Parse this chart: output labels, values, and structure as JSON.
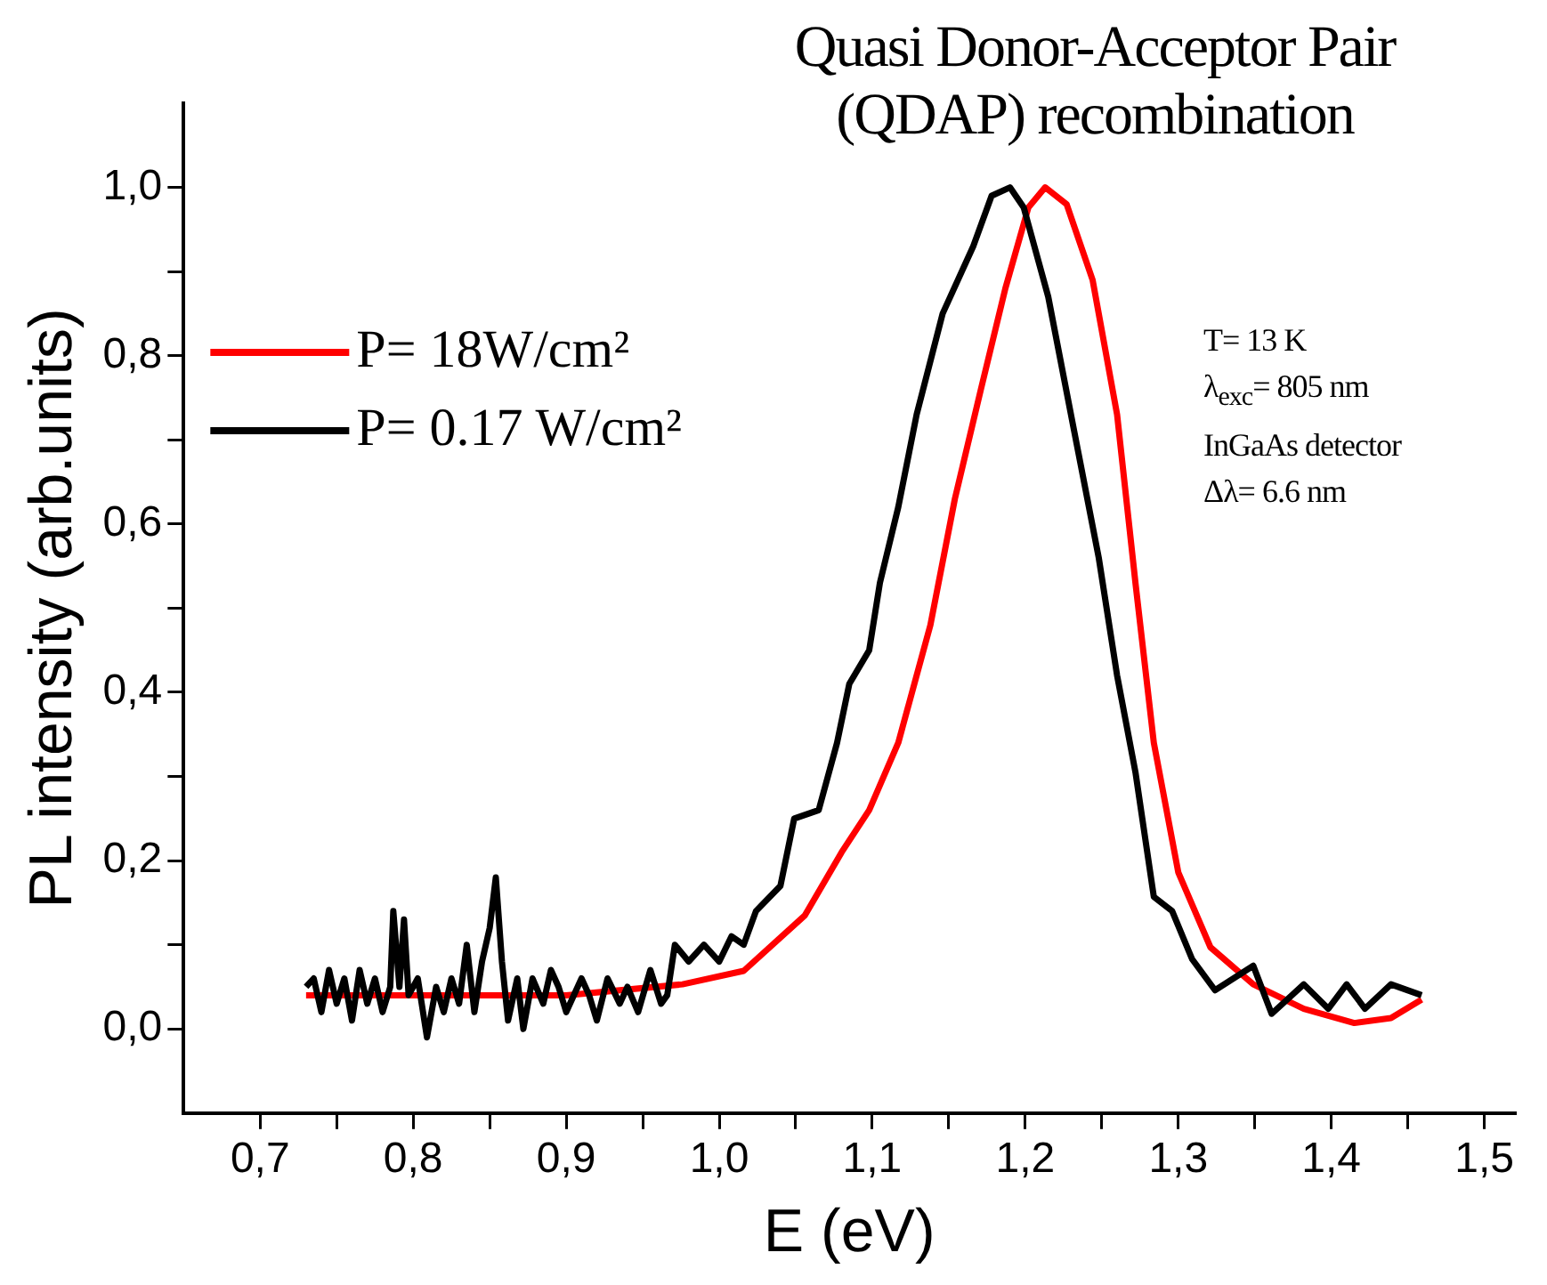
{
  "chart_data": {
    "type": "line",
    "title": "Quasi Donor-Acceptor Pair (QDAP) recombination",
    "xlabel": "E (eV)",
    "ylabel": "PL intensity (arb.units)",
    "xlim": [
      0.65,
      1.52
    ],
    "ylim": [
      -0.1,
      1.1
    ],
    "xticks": [
      {
        "value": 0.7,
        "label": "0,7"
      },
      {
        "value": 0.75,
        "label": null
      },
      {
        "value": 0.8,
        "label": "0,8"
      },
      {
        "value": 0.85,
        "label": null
      },
      {
        "value": 0.9,
        "label": "0,9"
      },
      {
        "value": 0.95,
        "label": null
      },
      {
        "value": 1.0,
        "label": "1,0"
      },
      {
        "value": 1.05,
        "label": null
      },
      {
        "value": 1.1,
        "label": "1,1"
      },
      {
        "value": 1.15,
        "label": null
      },
      {
        "value": 1.2,
        "label": "1,2"
      },
      {
        "value": 1.25,
        "label": null
      },
      {
        "value": 1.3,
        "label": "1,3"
      },
      {
        "value": 1.35,
        "label": null
      },
      {
        "value": 1.4,
        "label": "1,4"
      },
      {
        "value": 1.45,
        "label": null
      },
      {
        "value": 1.5,
        "label": "1,5"
      }
    ],
    "yticks": [
      {
        "value": 0.0,
        "label": "0,0"
      },
      {
        "value": 0.1,
        "label": null
      },
      {
        "value": 0.2,
        "label": "0,2"
      },
      {
        "value": 0.3,
        "label": null
      },
      {
        "value": 0.4,
        "label": "0,4"
      },
      {
        "value": 0.5,
        "label": null
      },
      {
        "value": 0.6,
        "label": "0,6"
      },
      {
        "value": 0.7,
        "label": null
      },
      {
        "value": 0.8,
        "label": "0,8"
      },
      {
        "value": 0.9,
        "label": null
      },
      {
        "value": 1.0,
        "label": "1,0"
      }
    ],
    "grid": false,
    "legend": "top left",
    "marker": "none",
    "line_style": "solid",
    "annotations": [
      "T= 13 K",
      "λ$_{exc}$= 805 nm",
      "InGaAs detector",
      "Δλ= 6.6 nm"
    ],
    "series": [
      {
        "name": "P= 18W/cm²",
        "color": "#ff0000",
        "x": [
          0.73,
          0.8,
          0.9,
          0.976,
          1.016,
          1.056,
          1.08,
          1.098,
          1.117,
          1.138,
          1.154,
          1.171,
          1.187,
          1.202,
          1.213,
          1.227,
          1.244,
          1.26,
          1.272,
          1.284,
          1.3,
          1.321,
          1.349,
          1.382,
          1.415,
          1.439,
          1.459
        ],
        "values": [
          0.04,
          0.04,
          0.04,
          0.053,
          0.069,
          0.135,
          0.21,
          0.26,
          0.34,
          0.48,
          0.63,
          0.76,
          0.88,
          0.976,
          1.0,
          0.98,
          0.89,
          0.73,
          0.53,
          0.34,
          0.186,
          0.097,
          0.053,
          0.024,
          0.007,
          0.013,
          0.035
        ]
      },
      {
        "name": "P= 0.17 W/cm²",
        "color": "#000000",
        "x": [
          0.73,
          0.735,
          0.74,
          0.745,
          0.75,
          0.755,
          0.76,
          0.765,
          0.77,
          0.775,
          0.78,
          0.785,
          0.787,
          0.791,
          0.794,
          0.797,
          0.803,
          0.809,
          0.815,
          0.82,
          0.825,
          0.83,
          0.835,
          0.84,
          0.845,
          0.85,
          0.854,
          0.858,
          0.862,
          0.868,
          0.872,
          0.878,
          0.885,
          0.89,
          0.895,
          0.9,
          0.91,
          0.915,
          0.92,
          0.927,
          0.935,
          0.94,
          0.947,
          0.955,
          0.962,
          0.966,
          0.971,
          0.98,
          0.99,
          1.0,
          1.008,
          1.016,
          1.024,
          1.04,
          1.049,
          1.065,
          1.077,
          1.085,
          1.098,
          1.105,
          1.117,
          1.129,
          1.146,
          1.166,
          1.178,
          1.19,
          1.199,
          1.215,
          1.232,
          1.248,
          1.26,
          1.272,
          1.284,
          1.296,
          1.309,
          1.324,
          1.349,
          1.361,
          1.382,
          1.398,
          1.41,
          1.422,
          1.439,
          1.459
        ],
        "values": [
          0.05,
          0.06,
          0.02,
          0.07,
          0.03,
          0.06,
          0.01,
          0.07,
          0.03,
          0.06,
          0.02,
          0.05,
          0.14,
          0.05,
          0.13,
          0.04,
          0.06,
          -0.01,
          0.05,
          0.02,
          0.06,
          0.03,
          0.1,
          0.02,
          0.08,
          0.12,
          0.18,
          0.08,
          0.01,
          0.06,
          0.0,
          0.06,
          0.03,
          0.07,
          0.05,
          0.02,
          0.06,
          0.04,
          0.01,
          0.06,
          0.03,
          0.05,
          0.02,
          0.07,
          0.03,
          0.04,
          0.1,
          0.08,
          0.1,
          0.08,
          0.11,
          0.1,
          0.14,
          0.17,
          0.25,
          0.26,
          0.34,
          0.41,
          0.45,
          0.53,
          0.62,
          0.73,
          0.85,
          0.93,
          0.99,
          1.0,
          0.976,
          0.87,
          0.71,
          0.56,
          0.42,
          0.305,
          0.157,
          0.14,
          0.083,
          0.046,
          0.075,
          0.018,
          0.053,
          0.024,
          0.053,
          0.024,
          0.053,
          0.04
        ]
      }
    ]
  }
}
